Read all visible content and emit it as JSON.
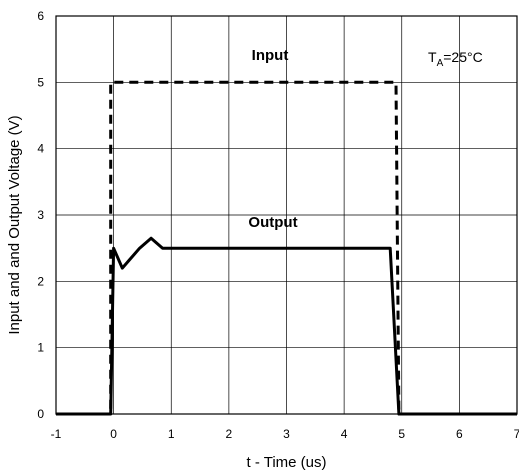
{
  "chart_data": {
    "type": "line",
    "title": "",
    "xlabel": "t - Time (us)",
    "ylabel": "Input and  and  Output  Voltage (V)",
    "xlim": [
      -1,
      7
    ],
    "ylim": [
      0,
      6
    ],
    "x_ticks": [
      -1,
      0,
      1,
      2,
      3,
      4,
      5,
      6,
      7
    ],
    "y_ticks": [
      0,
      1,
      2,
      3,
      4,
      5,
      6
    ],
    "grid": true,
    "series": [
      {
        "name": "Input",
        "style": "dashed",
        "points": [
          [
            -1,
            0
          ],
          [
            -0.05,
            0
          ],
          [
            -0.05,
            5
          ],
          [
            4.9,
            5
          ],
          [
            4.95,
            0
          ],
          [
            7,
            0
          ]
        ]
      },
      {
        "name": "Output",
        "style": "solid",
        "points": [
          [
            -1,
            0
          ],
          [
            -0.05,
            0
          ],
          [
            0,
            2.5
          ],
          [
            0.15,
            2.2
          ],
          [
            0.45,
            2.5
          ],
          [
            0.65,
            2.65
          ],
          [
            0.85,
            2.5
          ],
          [
            4.8,
            2.5
          ],
          [
            4.95,
            0
          ],
          [
            7,
            0
          ]
        ]
      }
    ],
    "annotations": {
      "input_label": "Input",
      "output_label": "Output",
      "temp_main": "T",
      "temp_sub": "A",
      "temp_value": "=25",
      "temp_unit": "°C"
    }
  }
}
